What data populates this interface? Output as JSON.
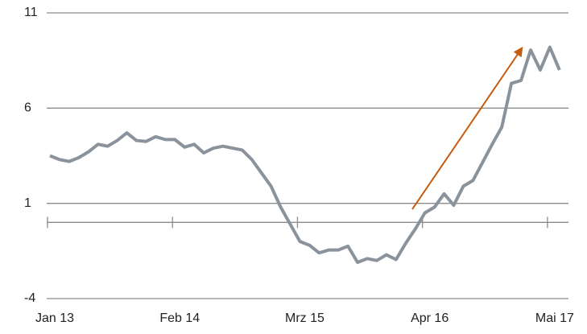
{
  "chart_data": {
    "type": "line",
    "categories": [
      "Jan 13",
      null,
      null,
      null,
      null,
      null,
      null,
      null,
      null,
      null,
      null,
      null,
      null,
      "Feb 14",
      null,
      null,
      null,
      null,
      null,
      null,
      null,
      null,
      null,
      null,
      null,
      null,
      "Mrz 15",
      null,
      null,
      null,
      null,
      null,
      null,
      null,
      null,
      null,
      null,
      null,
      null,
      "Apr 16",
      null,
      null,
      null,
      null,
      null,
      null,
      null,
      null,
      null,
      null,
      null,
      null,
      "Mai 17",
      null
    ],
    "series": [
      {
        "color": "#8a939c",
        "values": [
          3.5,
          3.3,
          3.2,
          3.4,
          3.7,
          4.1,
          4.0,
          4.3,
          4.7,
          4.3,
          4.25,
          4.5,
          4.35,
          4.35,
          3.95,
          4.1,
          3.65,
          3.9,
          4.0,
          3.9,
          3.8,
          3.3,
          2.6,
          1.9,
          0.8,
          -0.1,
          -1.0,
          -1.2,
          -1.6,
          -1.45,
          -1.45,
          -1.25,
          -2.1,
          -1.9,
          -2.0,
          -1.7,
          -1.95,
          -1.1,
          -0.35,
          0.5,
          0.8,
          1.5,
          0.9,
          1.9,
          2.2,
          3.15,
          4.1,
          5.0,
          7.3,
          7.45,
          9.05,
          8.0,
          9.2,
          8.0
        ]
      }
    ],
    "ylim": [
      -4,
      11
    ],
    "yticks": [
      -4,
      1,
      6,
      11
    ],
    "grid": true
  }
}
